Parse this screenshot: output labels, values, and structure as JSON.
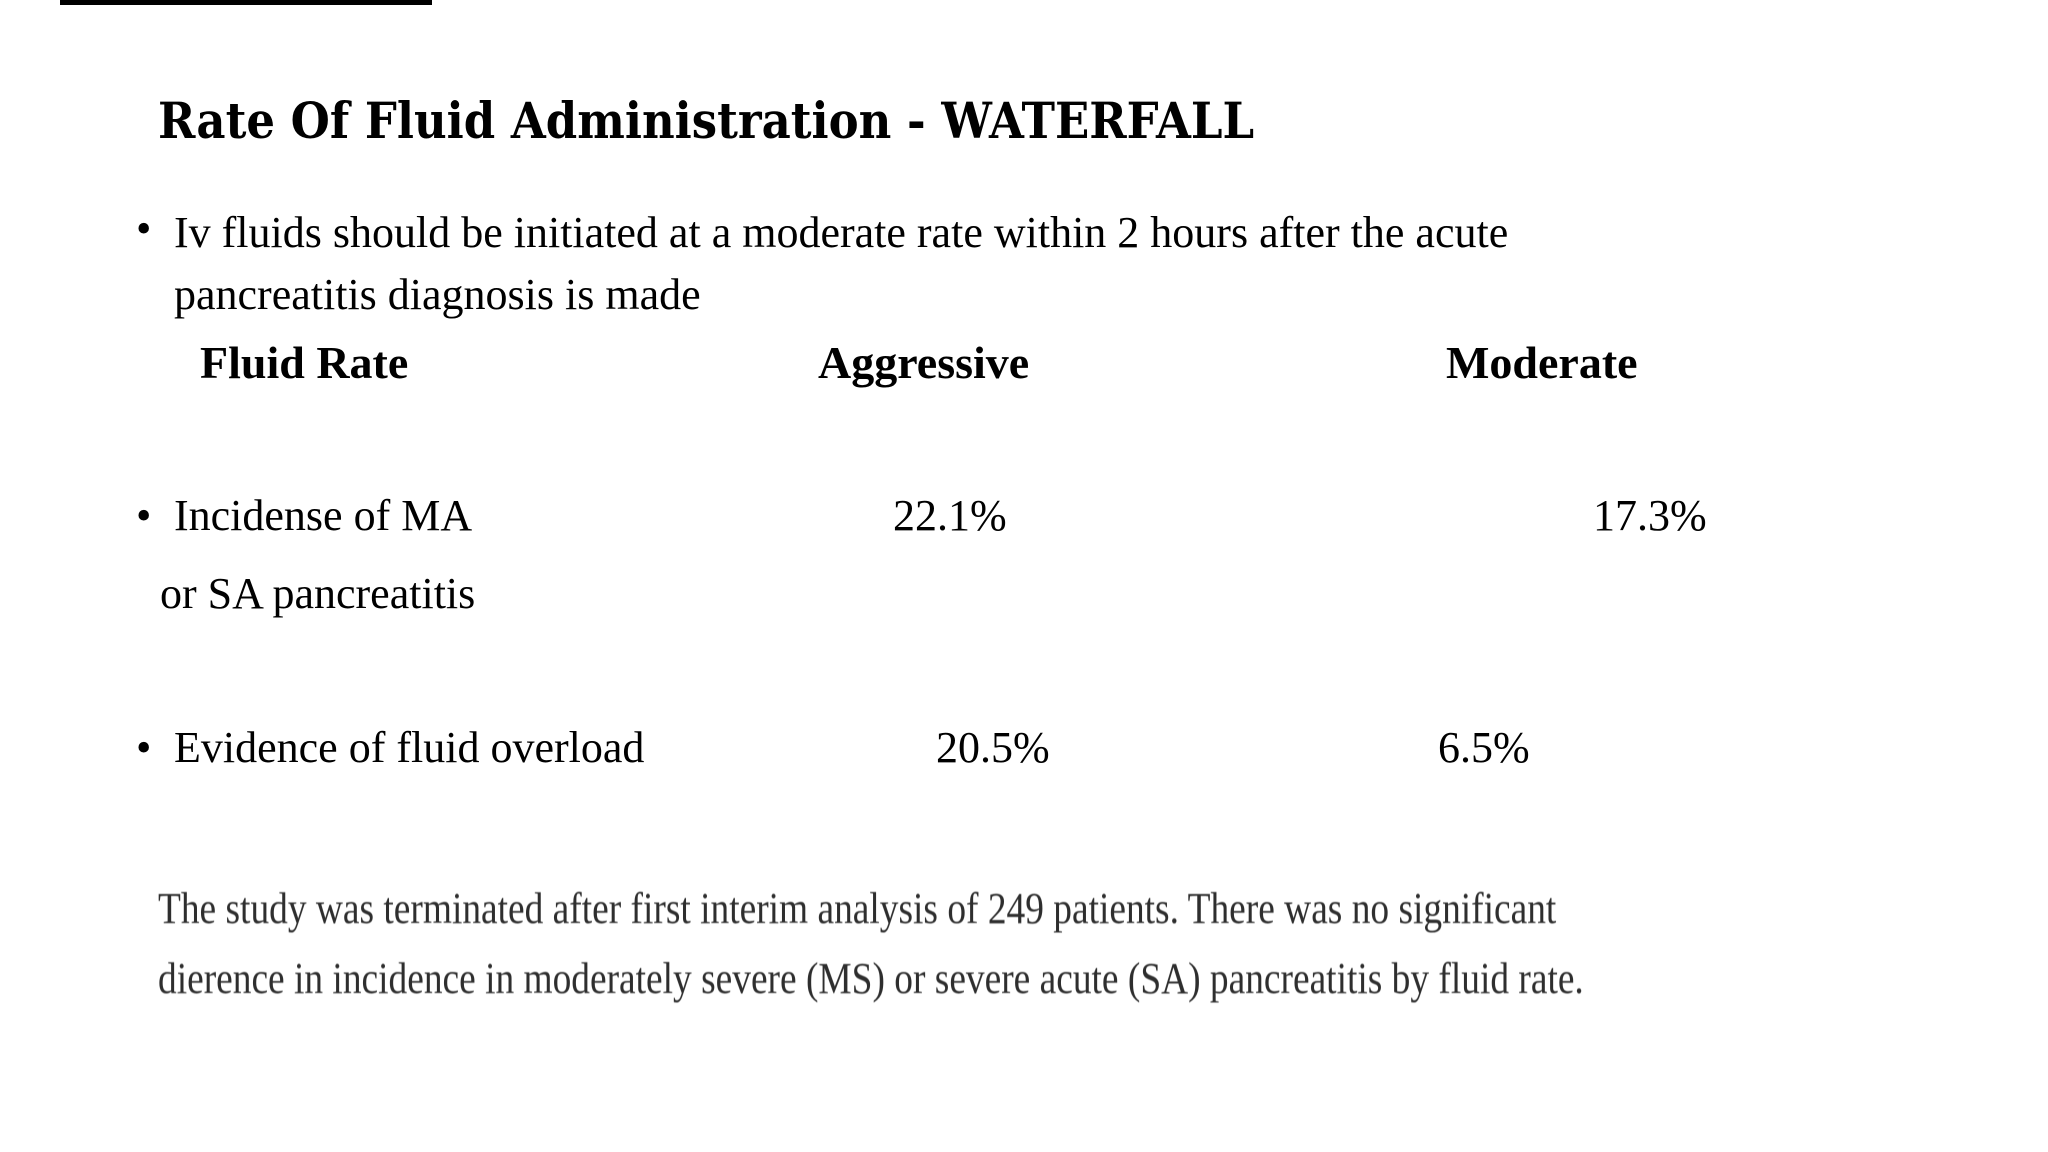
{
  "colors": {
    "background": "#ffffff",
    "text": "#000000",
    "footnote_text": "#2e2e2e",
    "top_line": "#000000"
  },
  "glyphs": {
    "bullet": "•"
  },
  "slide": {
    "title": "Rate Of Fluid Administration - WATERFALL",
    "intro": {
      "line1": "Iv fluids should be initiated at a moderate rate within 2 hours after the acute",
      "line2": "pancreatitis diagnosis is made"
    },
    "table": {
      "headers": [
        "Fluid Rate",
        "Aggressive",
        "Moderate"
      ],
      "rows": [
        {
          "label": "Incidense of MA",
          "label2": "or SA pancreatitis",
          "aggressive": "22.1%",
          "moderate": "17.3%"
        },
        {
          "label": "Evidence of fluid overload",
          "label2": "",
          "aggressive": "20.5%",
          "moderate": "6.5%"
        }
      ]
    },
    "footnote": {
      "line1": "The study was terminated after first interim analysis of 249 patients. There was no significant",
      "line2": "dierence in incidence in moderately severe (MS) or severe acute (SA) pancreatitis by fluid rate."
    }
  }
}
